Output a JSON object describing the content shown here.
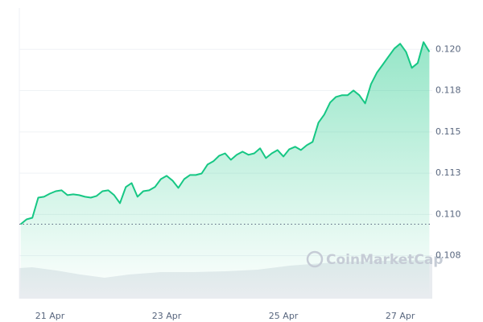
{
  "chart_data": {
    "type": "area",
    "watermark": "CoinMarketCap",
    "x": [
      20.5,
      20.6,
      20.7,
      20.8,
      20.9,
      21.0,
      21.1,
      21.2,
      21.3,
      21.4,
      21.5,
      21.6,
      21.7,
      21.8,
      21.9,
      22.0,
      22.1,
      22.2,
      22.3,
      22.4,
      22.5,
      22.6,
      22.7,
      22.8,
      22.9,
      23.0,
      23.1,
      23.2,
      23.3,
      23.4,
      23.5,
      23.6,
      23.7,
      23.8,
      23.9,
      24.0,
      24.1,
      24.2,
      24.3,
      24.4,
      24.5,
      24.6,
      24.7,
      24.8,
      24.9,
      25.0,
      25.1,
      25.2,
      25.3,
      25.4,
      25.5,
      25.6,
      25.7,
      25.8,
      25.9,
      26.0,
      26.1,
      26.2,
      26.3,
      26.4,
      26.5,
      26.6,
      26.7,
      26.8,
      26.9,
      27.0,
      27.1,
      27.2,
      27.3,
      27.4,
      27.5
    ],
    "series": [
      {
        "color": "#16c784",
        "values": [
          0.10941,
          0.1097,
          0.1098,
          0.11102,
          0.11107,
          0.11126,
          0.11141,
          0.11146,
          0.11117,
          0.11122,
          0.11117,
          0.11107,
          0.11102,
          0.11112,
          0.11141,
          0.11146,
          0.11117,
          0.11068,
          0.11166,
          0.1119,
          0.11107,
          0.11141,
          0.11146,
          0.11166,
          0.11214,
          0.11234,
          0.11205,
          0.11161,
          0.11214,
          0.11239,
          0.11239,
          0.11248,
          0.11302,
          0.11322,
          0.11356,
          0.1137,
          0.11331,
          0.11361,
          0.1138,
          0.11361,
          0.1137,
          0.114,
          0.11341,
          0.1137,
          0.1139,
          0.11351,
          0.11395,
          0.1141,
          0.1139,
          0.11419,
          0.11439,
          0.11556,
          0.11605,
          0.11678,
          0.11712,
          0.11722,
          0.11722,
          0.11751,
          0.11722,
          0.11673,
          0.1179,
          0.11858,
          0.11907,
          0.11956,
          0.12005,
          0.12034,
          0.11985,
          0.11888,
          0.11917,
          0.12044,
          0.11985
        ]
      }
    ],
    "xlim": [
      20.476,
      27.55
    ],
    "xticks": [
      {
        "value": 21,
        "label": "21 Apr"
      },
      {
        "value": 23,
        "label": "23 Apr"
      },
      {
        "value": 25,
        "label": "25 Apr"
      },
      {
        "value": 27,
        "label": "27 Apr"
      }
    ],
    "ylim": [
      0.1049,
      0.1225
    ],
    "yticks": [
      {
        "value": 0.1075,
        "label": "0.108"
      },
      {
        "value": 0.11,
        "label": "0.110"
      },
      {
        "value": 0.1125,
        "label": "0.113"
      },
      0.115,
      {
        "value": 0.1175,
        "label": "0.118"
      },
      {
        "value": 0.12,
        "label": "0.120"
      }
    ],
    "grid": true
  }
}
